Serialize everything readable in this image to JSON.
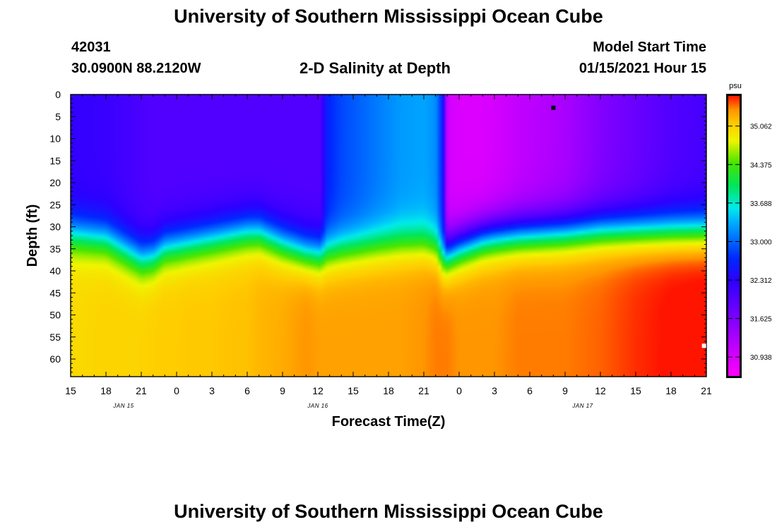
{
  "chart_data": {
    "type": "heatmap",
    "title": "University of Southern Mississippi Ocean Cube",
    "footer_title": "University of Southern Mississippi Ocean Cube",
    "station_id": "42031",
    "location": "30.0900N 88.2120W",
    "subtitle": "2-D Salinity at Depth",
    "model_start_label": "Model Start Time",
    "model_start_value": "01/15/2021 Hour 15",
    "xlabel": "Forecast Time(Z)",
    "ylabel": "Depth (ft)",
    "x_range_hours": [
      0,
      54
    ],
    "ylim": [
      0,
      64
    ],
    "x_ticks": [
      {
        "h": 0,
        "label": "15"
      },
      {
        "h": 3,
        "label": "18"
      },
      {
        "h": 6,
        "label": "21"
      },
      {
        "h": 9,
        "label": "0"
      },
      {
        "h": 12,
        "label": "3"
      },
      {
        "h": 15,
        "label": "6"
      },
      {
        "h": 18,
        "label": "9"
      },
      {
        "h": 21,
        "label": "12"
      },
      {
        "h": 24,
        "label": "15"
      },
      {
        "h": 27,
        "label": "18"
      },
      {
        "h": 30,
        "label": "21"
      },
      {
        "h": 33,
        "label": "0"
      },
      {
        "h": 36,
        "label": "3"
      },
      {
        "h": 39,
        "label": "6"
      },
      {
        "h": 42,
        "label": "9"
      },
      {
        "h": 45,
        "label": "12"
      },
      {
        "h": 48,
        "label": "15"
      },
      {
        "h": 51,
        "label": "18"
      },
      {
        "h": 54,
        "label": "21"
      }
    ],
    "date_labels": [
      {
        "h": 4.5,
        "label": "JAN 15"
      },
      {
        "h": 21,
        "label": "JAN 16"
      },
      {
        "h": 43.5,
        "label": "JAN 17"
      }
    ],
    "y_ticks": [
      0,
      5,
      10,
      15,
      20,
      25,
      30,
      35,
      40,
      45,
      50,
      55,
      60
    ],
    "colorbar": {
      "unit": "psu",
      "min": 30.6,
      "max": 35.6,
      "tick_values": [
        35.062,
        34.375,
        33.688,
        33.0,
        32.312,
        31.625,
        30.938
      ],
      "tick_labels": [
        "35.062",
        "34.375",
        "33.688",
        "33.000",
        "32.312",
        "31.625",
        "30.938"
      ]
    },
    "field_model": {
      "description": "Salinity (psu) by forecast hour and depth (ft); surface value, deep value and halocline depth vary with time",
      "hours": [
        0,
        3,
        5,
        6,
        7,
        8,
        9,
        10,
        11,
        12,
        14,
        15,
        16,
        18,
        20,
        21.2,
        21.8,
        23,
        26,
        28,
        30,
        31,
        31.6,
        32,
        33,
        35,
        36,
        38,
        42,
        45,
        48,
        51,
        54
      ],
      "surface_psu": [
        32.25,
        32.2,
        32.1,
        32.05,
        32.0,
        32.0,
        32.0,
        32.0,
        32.0,
        32.0,
        32.0,
        32.0,
        32.0,
        32.0,
        32.0,
        32.0,
        32.65,
        32.85,
        33.1,
        33.25,
        33.3,
        33.2,
        32.6,
        30.95,
        30.9,
        30.9,
        30.95,
        31.1,
        31.3,
        31.6,
        31.8,
        32.0,
        32.1
      ],
      "deep_psu": [
        35.0,
        35.05,
        35.05,
        35.05,
        35.08,
        35.1,
        35.1,
        35.12,
        35.12,
        35.12,
        35.15,
        35.15,
        35.2,
        35.25,
        35.35,
        35.3,
        35.3,
        35.3,
        35.3,
        35.3,
        35.35,
        35.4,
        35.4,
        35.4,
        35.35,
        35.35,
        35.35,
        35.4,
        35.4,
        35.45,
        35.55,
        35.62,
        35.65
      ],
      "halocline_ft": [
        31.5,
        32.5,
        35.5,
        37.0,
        36.5,
        34.5,
        34.0,
        33.5,
        33.0,
        32.5,
        31.5,
        31.0,
        31.0,
        33.5,
        35.5,
        36.0,
        35.5,
        35.0,
        34.0,
        33.5,
        33.5,
        34.5,
        37.0,
        36.0,
        34.5,
        32.5,
        32.0,
        31.5,
        31.0,
        30.5,
        30.5,
        30.5,
        30.5
      ]
    },
    "markers": [
      {
        "label": "black square",
        "h": 41.0,
        "depth": 3.0
      },
      {
        "label": "white square",
        "h": 53.8,
        "depth": 57.0
      }
    ]
  }
}
